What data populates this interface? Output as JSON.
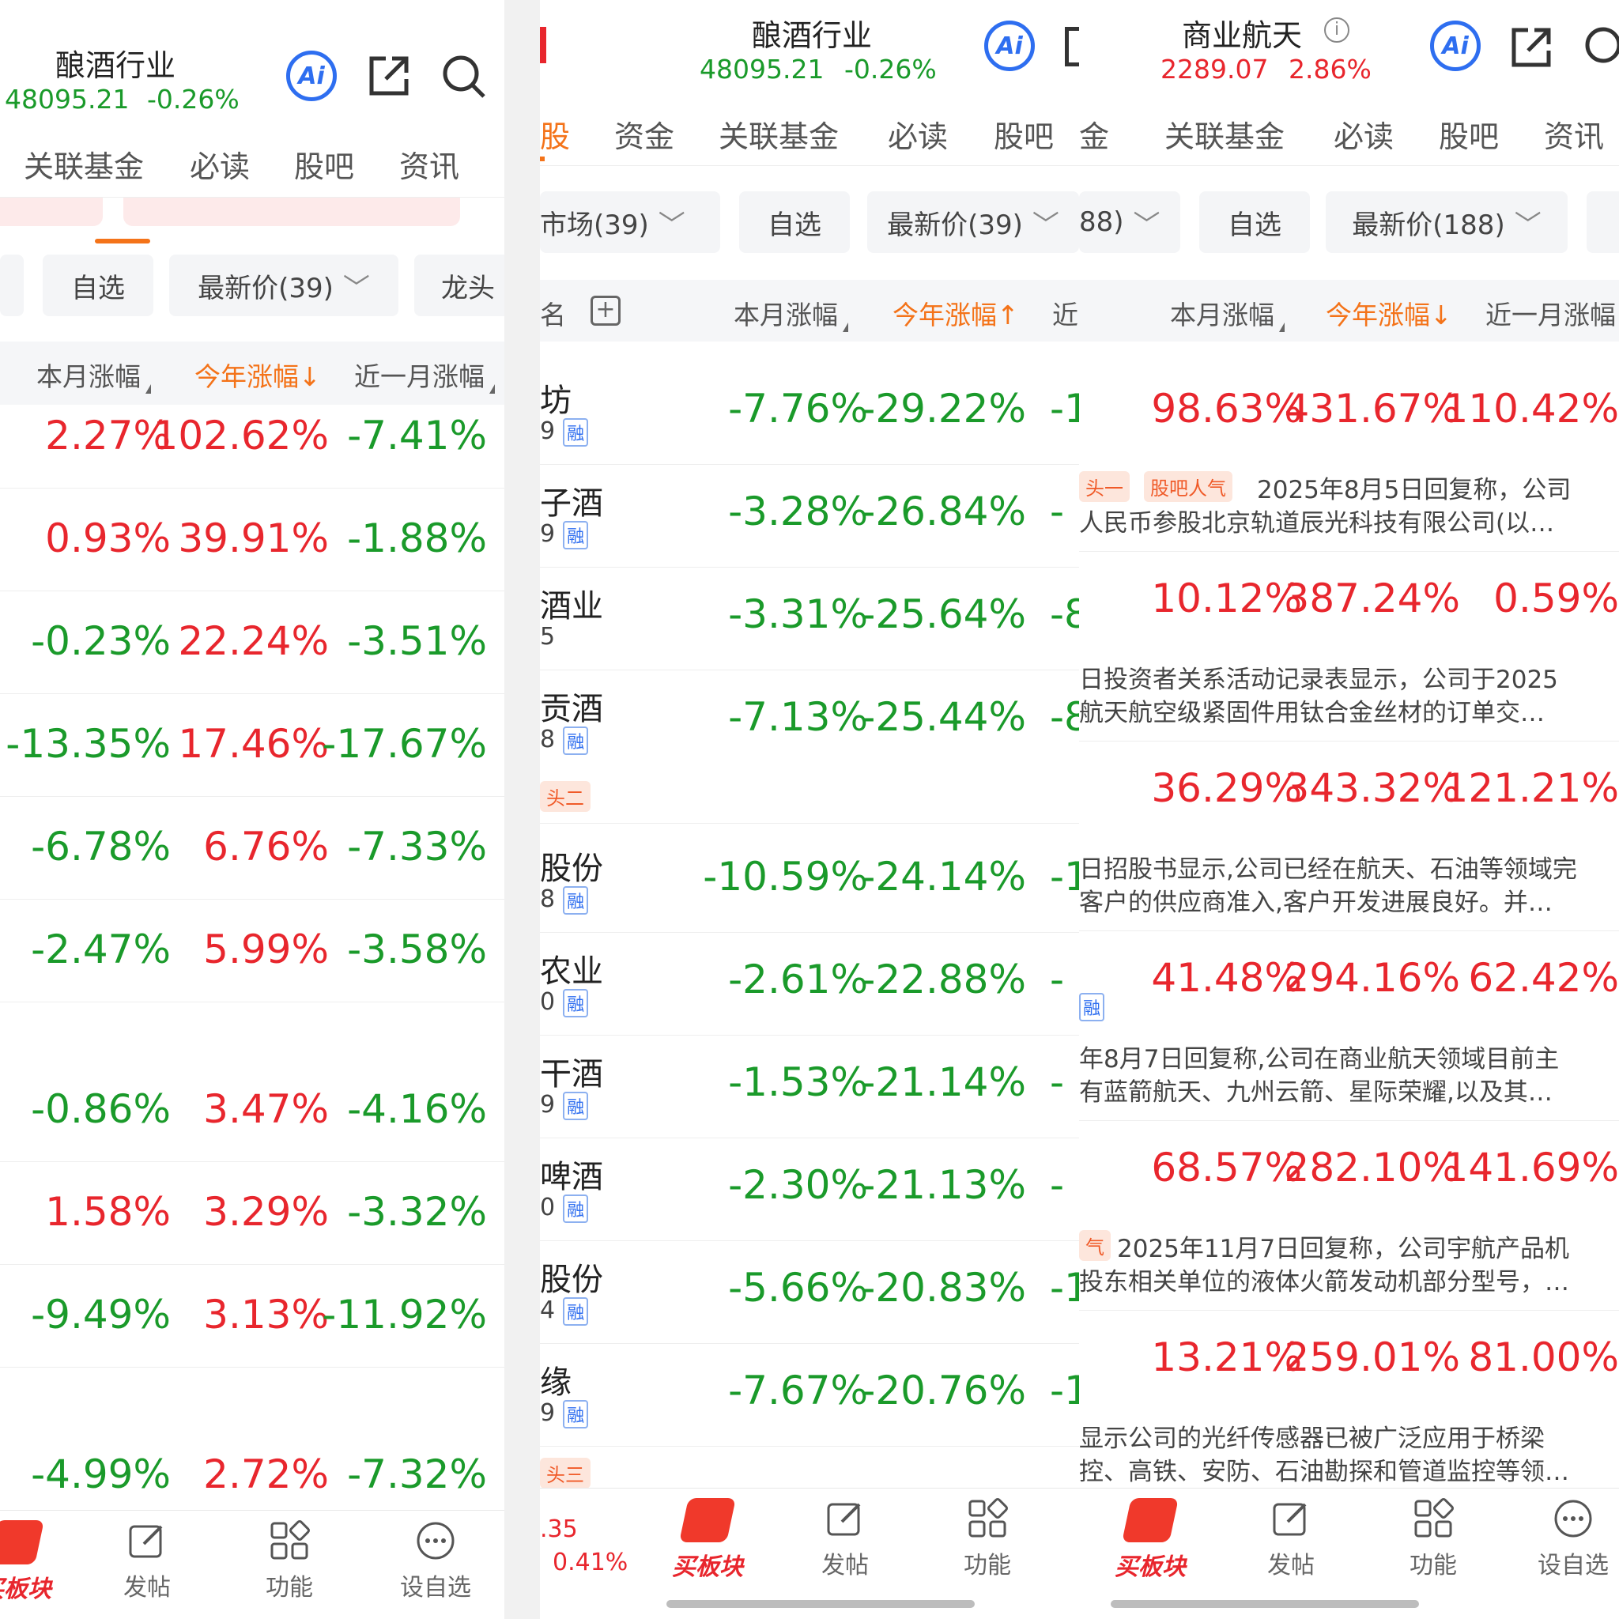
{
  "panel1": {
    "title": "酿酒行业",
    "index_value": "48095.21",
    "index_change": "-0.26%",
    "tabs": [
      "关联基金",
      "必读",
      "股吧",
      "资讯"
    ],
    "chips": [
      "自选",
      "最新价(39)",
      "龙头"
    ],
    "cols": [
      "本月涨幅",
      "今年涨幅↓",
      "近一月涨幅"
    ],
    "rows": [
      {
        "m": "2.27%",
        "y": "102.62%",
        "r": "-7.41%"
      },
      {
        "m": "0.93%",
        "y": "39.91%",
        "r": "-1.88%"
      },
      {
        "m": "-0.23%",
        "y": "22.24%",
        "r": "-3.51%"
      },
      {
        "m": "-13.35%",
        "y": "17.46%",
        "r": "-17.67%"
      },
      {
        "m": "-6.78%",
        "y": "6.76%",
        "r": "-7.33%"
      },
      {
        "m": "-2.47%",
        "y": "5.99%",
        "r": "-3.58%"
      },
      {
        "m": "-0.86%",
        "y": "3.47%",
        "r": "-4.16%"
      },
      {
        "m": "1.58%",
        "y": "3.29%",
        "r": "-3.32%"
      },
      {
        "m": "-9.49%",
        "y": "3.13%",
        "r": "-11.92%"
      },
      {
        "m": "-4.99%",
        "y": "2.72%",
        "r": "-7.32%"
      }
    ],
    "bottom": [
      "买板块",
      "发帖",
      "功能",
      "设自选"
    ]
  },
  "panel2": {
    "title": "酿酒行业",
    "index_value": "48095.21",
    "index_change": "-0.26%",
    "tabs": [
      "股",
      "资金",
      "关联基金",
      "必读",
      "股吧"
    ],
    "chips": [
      "市场(39)",
      "自选",
      "最新价(39)"
    ],
    "cols": [
      "本月涨幅",
      "今年涨幅↑",
      "近"
    ],
    "rows": [
      {
        "name": "坊",
        "code": "9",
        "rong": "融",
        "m": "-7.76%",
        "y": "-29.22%",
        "r": "-1"
      },
      {
        "name": "子酒",
        "code": "9",
        "rong": "融",
        "m": "-3.28%",
        "y": "-26.84%",
        "r": "-"
      },
      {
        "name": "酒业",
        "code": "5",
        "rong": "",
        "m": "-3.31%",
        "y": "-25.64%",
        "r": "-8"
      },
      {
        "name": "贡酒",
        "code": "8",
        "rong": "融",
        "m": "-7.13%",
        "y": "-25.44%",
        "r": "-8"
      },
      {
        "name": "股份",
        "code": "8",
        "rong": "融",
        "m": "-10.59%",
        "y": "-24.14%",
        "r": "-1"
      },
      {
        "name": "农业",
        "code": "0",
        "rong": "融",
        "m": "-2.61%",
        "y": "-22.88%",
        "r": "-"
      },
      {
        "name": "干酒",
        "code": "9",
        "rong": "融",
        "m": "-1.53%",
        "y": "-21.14%",
        "r": "-"
      },
      {
        "name": "啤酒",
        "code": "0",
        "rong": "融",
        "m": "-2.30%",
        "y": "-21.13%",
        "r": "-"
      },
      {
        "name": "股份",
        "code": "4",
        "rong": "融",
        "m": "-5.66%",
        "y": "-20.83%",
        "r": "-1"
      },
      {
        "name": "缘",
        "code": "9",
        "rong": "融",
        "m": "-7.67%",
        "y": "-20.76%",
        "r": "-1"
      }
    ],
    "badges": [
      "头二",
      "头三"
    ],
    "bottom_price": ".35",
    "bottom_change": "0.41%",
    "bottom": [
      "买板块",
      "发帖",
      "功能"
    ]
  },
  "panel3": {
    "title": "商业航天",
    "index_value": "2289.07",
    "index_change": "2.86%",
    "tabs": [
      "金",
      "关联基金",
      "必读",
      "股吧",
      "资讯"
    ],
    "chips": [
      "88)",
      "自选",
      "最新价(188)"
    ],
    "cols": [
      "本月涨幅",
      "今年涨幅↓",
      "近一月涨幅"
    ],
    "rows": [
      {
        "m": "98.63%",
        "y": "431.67%",
        "r": "110.42%",
        "n1": "2025年8月5日回复称，公司",
        "n2": "人民币参股北京轨道辰光科技有限公司(以…"
      },
      {
        "m": "10.12%",
        "y": "387.24%",
        "r": "0.59%",
        "n1": "日投资者关系活动记录表显示，公司于2025",
        "n2": "航天航空级紧固件用钛合金丝材的订单交…"
      },
      {
        "m": "36.29%",
        "y": "343.32%",
        "r": "121.21%",
        "n1": "日招股书显示,公司已经在航天、石油等领域完",
        "n2": "客户的供应商准入,客户开发进展良好。并…"
      },
      {
        "m": "41.48%",
        "y": "294.16%",
        "r": "62.42%",
        "n1": "年8月7日回复称,公司在商业航天领域目前主",
        "n2": "有蓝箭航天、九州云箭、星际荣耀,以及其…"
      },
      {
        "m": "68.57%",
        "y": "282.10%",
        "r": "141.69%",
        "n1": "2025年11月7日回复称，公司宇航产品机",
        "n2": "投东相关单位的液体火箭发动机部分型号，…"
      },
      {
        "m": "13.21%",
        "y": "259.01%",
        "r": "81.00%",
        "n1": "显示公司的光纤传感器已被广泛应用于桥梁",
        "n2": "控、高铁、安防、石油勘探和管道监控等领…"
      }
    ],
    "badges": [
      "头一",
      "股吧人气",
      "气"
    ],
    "bottom": [
      "买板块",
      "发帖",
      "功能",
      "设自选"
    ]
  },
  "colors": {
    "red": "#e8262d",
    "green": "#1a9a2a",
    "accent": "#f47319",
    "ai_blue": "#2e6ef0"
  }
}
